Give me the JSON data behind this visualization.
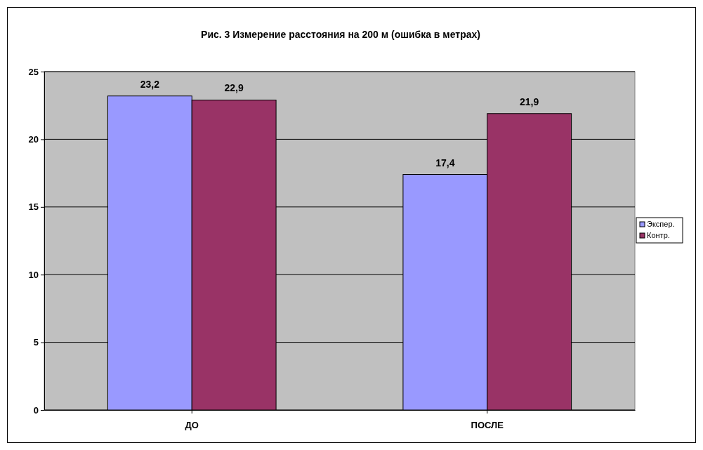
{
  "chart_data": {
    "type": "bar",
    "title": "Рис. 3 Измерение расстояния на 200 м (ошибка в метрах)",
    "categories": [
      "ДО",
      "ПОСЛЕ"
    ],
    "series": [
      {
        "name": "Экспер.",
        "color": "#9999ff",
        "values": [
          23.2,
          17.4
        ],
        "value_labels": [
          "23,2",
          "17,4"
        ]
      },
      {
        "name": "Контр.",
        "color": "#993366",
        "values": [
          22.9,
          21.9
        ],
        "value_labels": [
          "22,9",
          "21,9"
        ]
      }
    ],
    "ylim": [
      0,
      25
    ],
    "yticks": [
      0,
      5,
      10,
      15,
      20,
      25
    ],
    "grid": "y",
    "legend": "right"
  }
}
